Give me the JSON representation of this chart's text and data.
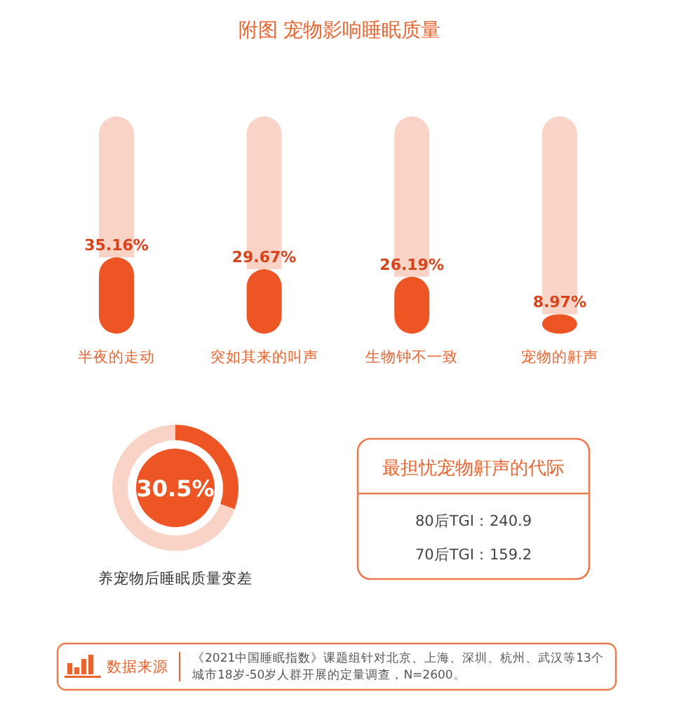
{
  "chart_data": [
    {
      "type": "bar",
      "title": "附图 宠物影响睡眠质量",
      "categories": [
        "半夜的走动",
        "突如其来的叫声",
        "生物钟不一致",
        "宠物的鼾声"
      ],
      "stacked": true,
      "series": [
        {
          "color": "#ee5524",
          "values": [
            35.16,
            29.67,
            26.19,
            8.97
          ],
          "value_labels": [
            "35.16%",
            "29.67%",
            "26.19%",
            "8.97%"
          ]
        },
        {
          "color": "#f9d3c6",
          "values": [
            64.84,
            70.33,
            73.81,
            91.03
          ]
        }
      ],
      "ylim": [
        0,
        100
      ],
      "tick_labels": false
    },
    {
      "type": "donut",
      "title": "养宠物后睡眠质量变差",
      "categories": [
        null,
        null
      ],
      "values": [
        30.5,
        69.5
      ],
      "colors": [
        "#ee5524",
        "#f9d3c6"
      ],
      "annotations": [
        "30.5%"
      ]
    },
    {
      "type": "other",
      "title": "最担忧宠物鼾声的代际",
      "annotations": [
        "80后TGI：240.9",
        "70后TGI：159.2"
      ]
    },
    {
      "type": "other",
      "title": "数据来源",
      "annotations": [
        "《2021中国睡眠指数》课题组针对北京、上海、深圳、杭州、武汉等13个城市18岁-50岁人群开展的定量调查，N=2600。"
      ]
    }
  ]
}
